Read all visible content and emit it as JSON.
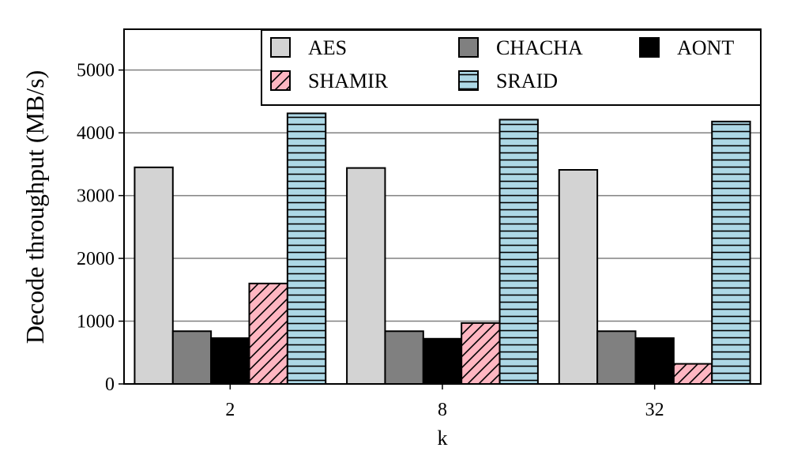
{
  "chart_data": {
    "type": "bar",
    "categories": [
      "2",
      "8",
      "32"
    ],
    "xlabel": "k",
    "ylabel": "Decode throughput (MB/s)",
    "ylim": [
      0,
      5650
    ],
    "yticks": [
      0,
      1000,
      2000,
      3000,
      4000,
      5000
    ],
    "grid": "horizontal",
    "legend_position": "top-right",
    "legend_columns": 3,
    "series": [
      {
        "name": "AES",
        "values": [
          3450,
          3440,
          3410
        ],
        "color": "#d3d3d3",
        "hatch": "none"
      },
      {
        "name": "CHACHA",
        "values": [
          840,
          840,
          840
        ],
        "color": "#808080",
        "hatch": "none"
      },
      {
        "name": "AONT",
        "values": [
          730,
          720,
          730
        ],
        "color": "#000000",
        "hatch": "none"
      },
      {
        "name": "SHAMIR",
        "values": [
          1600,
          970,
          320
        ],
        "color": "#ffb6c1",
        "hatch": "diagonal"
      },
      {
        "name": "SRAID",
        "values": [
          4310,
          4210,
          4180
        ],
        "color": "#add8e6",
        "hatch": "horizontal"
      }
    ]
  }
}
